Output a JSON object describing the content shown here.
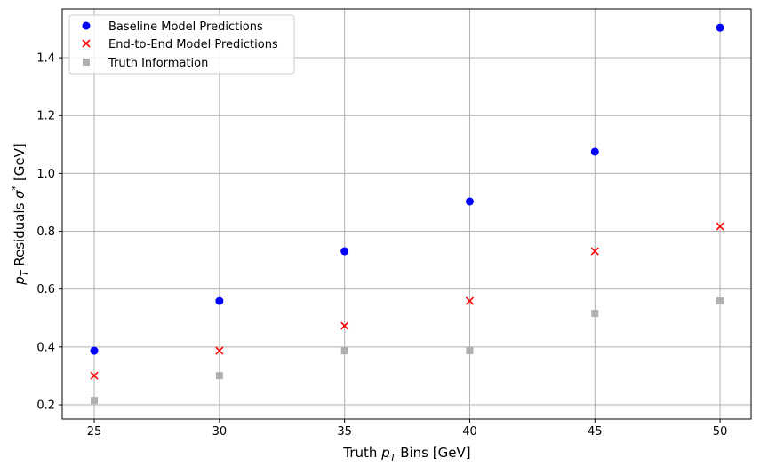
{
  "chart_data": {
    "type": "scatter",
    "title": "",
    "xlabel": "Truth p_T Bins [GeV]",
    "xlabel_parts": {
      "pre": "Truth ",
      "sym": "p",
      "sub": "T",
      "post": " Bins [GeV]"
    },
    "ylabel": "p_T Residuals σ* [GeV]",
    "ylabel_parts": {
      "sym": "p",
      "sub": "T",
      "mid": " Residuals ",
      "sigma": "σ",
      "sup": "*",
      "post": " [GeV]"
    },
    "xlim": [
      23.72,
      51.24
    ],
    "ylim": [
      0.151,
      1.569
    ],
    "xticks": [
      "25",
      "30",
      "35",
      "40",
      "45",
      "50"
    ],
    "yticks": [
      "0.2",
      "0.4",
      "0.6",
      "0.8",
      "1.0",
      "1.2",
      "1.4"
    ],
    "grid": true,
    "legend_position": "top-left",
    "x": [
      25,
      30,
      35,
      40,
      45,
      50
    ],
    "series": [
      {
        "name": "Baseline Model Predictions",
        "marker": "circle",
        "color": "#0000ff",
        "values": [
          0.387,
          0.559,
          0.731,
          0.903,
          1.075,
          1.504
        ]
      },
      {
        "name": "End-to-End Model Predictions",
        "marker": "x",
        "color": "#ff0000",
        "values": [
          0.301,
          0.387,
          0.473,
          0.559,
          0.731,
          0.817
        ]
      },
      {
        "name": "Truth Information",
        "marker": "square",
        "color": "#b0b0b0",
        "values": [
          0.215,
          0.301,
          0.387,
          0.387,
          0.516,
          0.559
        ]
      }
    ]
  }
}
